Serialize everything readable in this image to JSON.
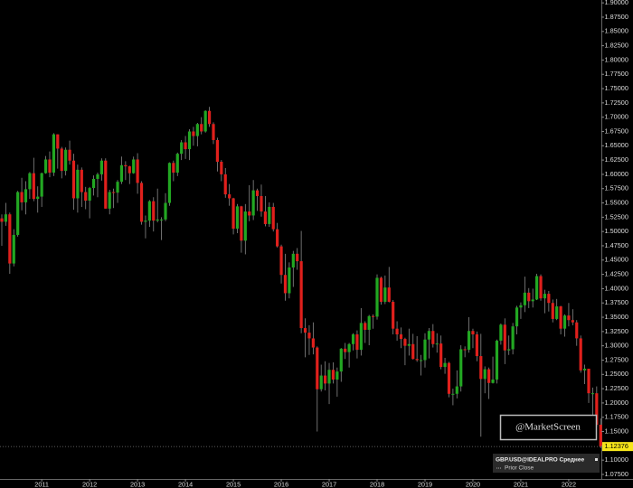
{
  "chart_data": {
    "type": "candlestick",
    "categories": [
      null,
      null,
      null,
      null,
      null,
      null,
      null,
      null,
      null,
      null,
      "2011",
      null,
      null,
      null,
      null,
      null,
      null,
      null,
      null,
      null,
      null,
      null,
      "2012",
      null,
      null,
      null,
      null,
      null,
      null,
      null,
      null,
      null,
      null,
      null,
      "2013",
      null,
      null,
      null,
      null,
      null,
      null,
      null,
      null,
      null,
      null,
      null,
      "2014",
      null,
      null,
      null,
      null,
      null,
      null,
      null,
      null,
      null,
      null,
      null,
      "2015",
      null,
      null,
      null,
      null,
      null,
      null,
      null,
      null,
      null,
      null,
      null,
      "2016",
      null,
      null,
      null,
      null,
      null,
      null,
      null,
      null,
      null,
      null,
      null,
      "2017",
      null,
      null,
      null,
      null,
      null,
      null,
      null,
      null,
      null,
      null,
      null,
      "2018",
      null,
      null,
      null,
      null,
      null,
      null,
      null,
      null,
      null,
      null,
      null,
      "2019",
      null,
      null,
      null,
      null,
      null,
      null,
      null,
      null,
      null,
      null,
      null,
      "2020",
      null,
      null,
      null,
      null,
      null,
      null,
      null,
      null,
      null,
      null,
      null,
      "2021",
      null,
      null,
      null,
      null,
      null,
      null,
      null,
      null,
      null,
      null,
      null,
      "2022",
      null,
      null,
      null,
      null,
      null,
      null,
      null,
      null
    ],
    "open": [
      1.523,
      1.517,
      1.53,
      1.444,
      1.494,
      1.569,
      1.551,
      1.574,
      1.602,
      1.557,
      1.561,
      1.602,
      1.626,
      1.603,
      1.67,
      1.645,
      1.606,
      1.643,
      1.624,
      1.558,
      1.608,
      1.569,
      1.554,
      1.576,
      1.592,
      1.6,
      1.624,
      1.54,
      1.569,
      1.568,
      1.587,
      1.616,
      1.614,
      1.602,
      1.626,
      1.585,
      1.517,
      1.519,
      1.553,
      1.519,
      1.521,
      1.521,
      1.55,
      1.62,
      1.603,
      1.636,
      1.656,
      1.644,
      1.675,
      1.667,
      1.688,
      1.675,
      1.711,
      1.688,
      1.66,
      1.622,
      1.6,
      1.565,
      1.558,
      1.505,
      1.544,
      1.484,
      1.535,
      1.528,
      1.572,
      1.562,
      1.535,
      1.513,
      1.543,
      1.504,
      1.474,
      1.424,
      1.392,
      1.437,
      1.461,
      1.448,
      1.331,
      1.323,
      1.313,
      1.297,
      1.224,
      1.248,
      1.234,
      1.258,
      1.241,
      1.255,
      1.295,
      1.289,
      1.303,
      1.32,
      1.293,
      1.34,
      1.328,
      1.352,
      1.351,
      1.419,
      1.377,
      1.402,
      1.377,
      1.33,
      1.32,
      1.312,
      1.3,
      1.303,
      1.277,
      1.275,
      1.275,
      1.311,
      1.326,
      1.303,
      1.304,
      1.263,
      1.27,
      1.216,
      1.216,
      1.229,
      1.294,
      1.293,
      1.326,
      1.32,
      1.282,
      1.242,
      1.259,
      1.235,
      1.241,
      1.309,
      1.337,
      1.292,
      1.294,
      1.334,
      1.367,
      1.371,
      1.393,
      1.378,
      1.381,
      1.422,
      1.383,
      1.391,
      1.375,
      1.347,
      1.369,
      1.33,
      1.353,
      1.345,
      1.341,
      1.313,
      1.257,
      1.26,
      1.217,
      1.217,
      1.162
    ],
    "high": [
      1.53,
      1.55,
      1.533,
      1.504,
      1.571,
      1.594,
      1.588,
      1.604,
      1.629,
      1.579,
      1.603,
      1.632,
      1.64,
      1.672,
      1.67,
      1.648,
      1.647,
      1.659,
      1.636,
      1.617,
      1.612,
      1.578,
      1.578,
      1.598,
      1.603,
      1.628,
      1.628,
      1.573,
      1.575,
      1.59,
      1.631,
      1.623,
      1.615,
      1.631,
      1.637,
      1.588,
      1.528,
      1.555,
      1.56,
      1.575,
      1.525,
      1.567,
      1.621,
      1.624,
      1.638,
      1.66,
      1.667,
      1.679,
      1.683,
      1.69,
      1.7,
      1.712,
      1.718,
      1.691,
      1.664,
      1.625,
      1.611,
      1.583,
      1.559,
      1.548,
      1.545,
      1.548,
      1.581,
      1.59,
      1.575,
      1.582,
      1.562,
      1.551,
      1.55,
      1.515,
      1.477,
      1.461,
      1.446,
      1.466,
      1.471,
      1.501,
      1.348,
      1.336,
      1.341,
      1.299,
      1.267,
      1.273,
      1.27,
      1.271,
      1.262,
      1.296,
      1.305,
      1.305,
      1.322,
      1.327,
      1.366,
      1.343,
      1.354,
      1.355,
      1.425,
      1.421,
      1.423,
      1.438,
      1.38,
      1.343,
      1.332,
      1.314,
      1.33,
      1.321,
      1.317,
      1.284,
      1.322,
      1.331,
      1.338,
      1.322,
      1.318,
      1.279,
      1.272,
      1.225,
      1.257,
      1.301,
      1.299,
      1.35,
      1.33,
      1.325,
      1.321,
      1.264,
      1.262,
      1.281,
      1.311,
      1.339,
      1.348,
      1.318,
      1.34,
      1.37,
      1.376,
      1.421,
      1.401,
      1.4,
      1.426,
      1.425,
      1.398,
      1.396,
      1.381,
      1.382,
      1.37,
      1.355,
      1.375,
      1.364,
      1.345,
      1.318,
      1.267,
      1.26,
      1.227,
      1.229,
      1.173
    ],
    "low": [
      1.475,
      1.51,
      1.426,
      1.439,
      1.491,
      1.537,
      1.53,
      1.557,
      1.553,
      1.533,
      1.543,
      1.601,
      1.595,
      1.597,
      1.61,
      1.593,
      1.598,
      1.617,
      1.538,
      1.533,
      1.543,
      1.539,
      1.523,
      1.563,
      1.56,
      1.589,
      1.54,
      1.53,
      1.541,
      1.55,
      1.583,
      1.59,
      1.583,
      1.601,
      1.566,
      1.512,
      1.488,
      1.508,
      1.5,
      1.516,
      1.485,
      1.518,
      1.545,
      1.588,
      1.597,
      1.625,
      1.627,
      1.625,
      1.65,
      1.649,
      1.67,
      1.673,
      1.683,
      1.653,
      1.605,
      1.588,
      1.559,
      1.545,
      1.495,
      1.497,
      1.463,
      1.46,
      1.518,
      1.52,
      1.536,
      1.526,
      1.509,
      1.508,
      1.5,
      1.472,
      1.409,
      1.379,
      1.383,
      1.403,
      1.433,
      1.322,
      1.28,
      1.284,
      1.285,
      1.15,
      1.22,
      1.222,
      1.198,
      1.234,
      1.211,
      1.237,
      1.277,
      1.262,
      1.292,
      1.278,
      1.283,
      1.305,
      1.301,
      1.33,
      1.346,
      1.372,
      1.373,
      1.376,
      1.32,
      1.309,
      1.296,
      1.266,
      1.283,
      1.276,
      1.272,
      1.248,
      1.262,
      1.278,
      1.297,
      1.288,
      1.259,
      1.251,
      1.21,
      1.196,
      1.208,
      1.22,
      1.28,
      1.288,
      1.296,
      1.273,
      1.141,
      1.217,
      1.207,
      1.234,
      1.234,
      1.302,
      1.268,
      1.284,
      1.285,
      1.32,
      1.347,
      1.359,
      1.366,
      1.367,
      1.38,
      1.379,
      1.357,
      1.36,
      1.341,
      1.345,
      1.32,
      1.316,
      1.334,
      1.336,
      1.3,
      1.253,
      1.233,
      1.2,
      1.176,
      1.159,
      1.121
    ],
    "close": [
      1.517,
      1.53,
      1.444,
      1.494,
      1.569,
      1.551,
      1.574,
      1.602,
      1.557,
      1.561,
      1.602,
      1.626,
      1.603,
      1.67,
      1.645,
      1.606,
      1.643,
      1.624,
      1.558,
      1.608,
      1.569,
      1.554,
      1.576,
      1.592,
      1.6,
      1.624,
      1.54,
      1.569,
      1.568,
      1.587,
      1.616,
      1.614,
      1.602,
      1.626,
      1.585,
      1.517,
      1.519,
      1.553,
      1.519,
      1.521,
      1.521,
      1.55,
      1.62,
      1.603,
      1.636,
      1.656,
      1.644,
      1.675,
      1.667,
      1.688,
      1.675,
      1.711,
      1.688,
      1.66,
      1.622,
      1.6,
      1.565,
      1.558,
      1.505,
      1.544,
      1.484,
      1.535,
      1.528,
      1.572,
      1.562,
      1.535,
      1.513,
      1.543,
      1.504,
      1.474,
      1.424,
      1.392,
      1.437,
      1.461,
      1.448,
      1.331,
      1.323,
      1.313,
      1.297,
      1.224,
      1.248,
      1.234,
      1.258,
      1.241,
      1.255,
      1.295,
      1.289,
      1.303,
      1.32,
      1.293,
      1.34,
      1.328,
      1.352,
      1.351,
      1.419,
      1.377,
      1.402,
      1.377,
      1.33,
      1.32,
      1.312,
      1.3,
      1.303,
      1.277,
      1.275,
      1.275,
      1.311,
      1.326,
      1.303,
      1.304,
      1.263,
      1.27,
      1.216,
      1.216,
      1.229,
      1.294,
      1.293,
      1.326,
      1.32,
      1.282,
      1.242,
      1.259,
      1.235,
      1.241,
      1.309,
      1.337,
      1.292,
      1.294,
      1.334,
      1.367,
      1.371,
      1.393,
      1.378,
      1.381,
      1.422,
      1.383,
      1.391,
      1.375,
      1.347,
      1.369,
      1.33,
      1.353,
      1.345,
      1.341,
      1.313,
      1.257,
      1.26,
      1.217,
      1.217,
      1.162,
      1.12376
    ],
    "up_color": "#22a722",
    "down_color": "#e0201c",
    "ylim": [
      1.065,
      1.905
    ],
    "yticks": [
      {
        "value": 1.075,
        "label": "1.07500"
      },
      {
        "value": 1.1,
        "label": "1.10000"
      },
      {
        "value": 1.125,
        "label": "1.12500"
      },
      {
        "value": 1.15,
        "label": "1.15000"
      },
      {
        "value": 1.175,
        "label": "1.17500"
      },
      {
        "value": 1.2,
        "label": "1.20000"
      },
      {
        "value": 1.225,
        "label": "1.22500"
      },
      {
        "value": 1.25,
        "label": "1.25000"
      },
      {
        "value": 1.275,
        "label": "1.27500"
      },
      {
        "value": 1.3,
        "label": "1.30000"
      },
      {
        "value": 1.325,
        "label": "1.32500"
      },
      {
        "value": 1.35,
        "label": "1.35000"
      },
      {
        "value": 1.375,
        "label": "1.37500"
      },
      {
        "value": 1.4,
        "label": "1.40000"
      },
      {
        "value": 1.425,
        "label": "1.42500"
      },
      {
        "value": 1.45,
        "label": "1.45000"
      },
      {
        "value": 1.475,
        "label": "1.47500"
      },
      {
        "value": 1.5,
        "label": "1.50000"
      },
      {
        "value": 1.525,
        "label": "1.52500"
      },
      {
        "value": 1.55,
        "label": "1.55000"
      },
      {
        "value": 1.575,
        "label": "1.57500"
      },
      {
        "value": 1.6,
        "label": "1.60000"
      },
      {
        "value": 1.625,
        "label": "1.62500"
      },
      {
        "value": 1.65,
        "label": "1.65000"
      },
      {
        "value": 1.675,
        "label": "1.67500"
      },
      {
        "value": 1.7,
        "label": "1.70000"
      },
      {
        "value": 1.725,
        "label": "1.72500"
      },
      {
        "value": 1.75,
        "label": "1.75000"
      },
      {
        "value": 1.775,
        "label": "1.77500"
      },
      {
        "value": 1.8,
        "label": "1.80000"
      },
      {
        "value": 1.825,
        "label": "1.82500"
      },
      {
        "value": 1.85,
        "label": "1.85000"
      },
      {
        "value": 1.875,
        "label": "1.87500"
      },
      {
        "value": 1.9,
        "label": "1.90000"
      }
    ],
    "grid": false,
    "watermark": "@MarketScreen",
    "legend": [
      {
        "name": "GBP.USD@IDEALPRO Среднее"
      },
      {
        "name": "Prior Close"
      }
    ]
  }
}
